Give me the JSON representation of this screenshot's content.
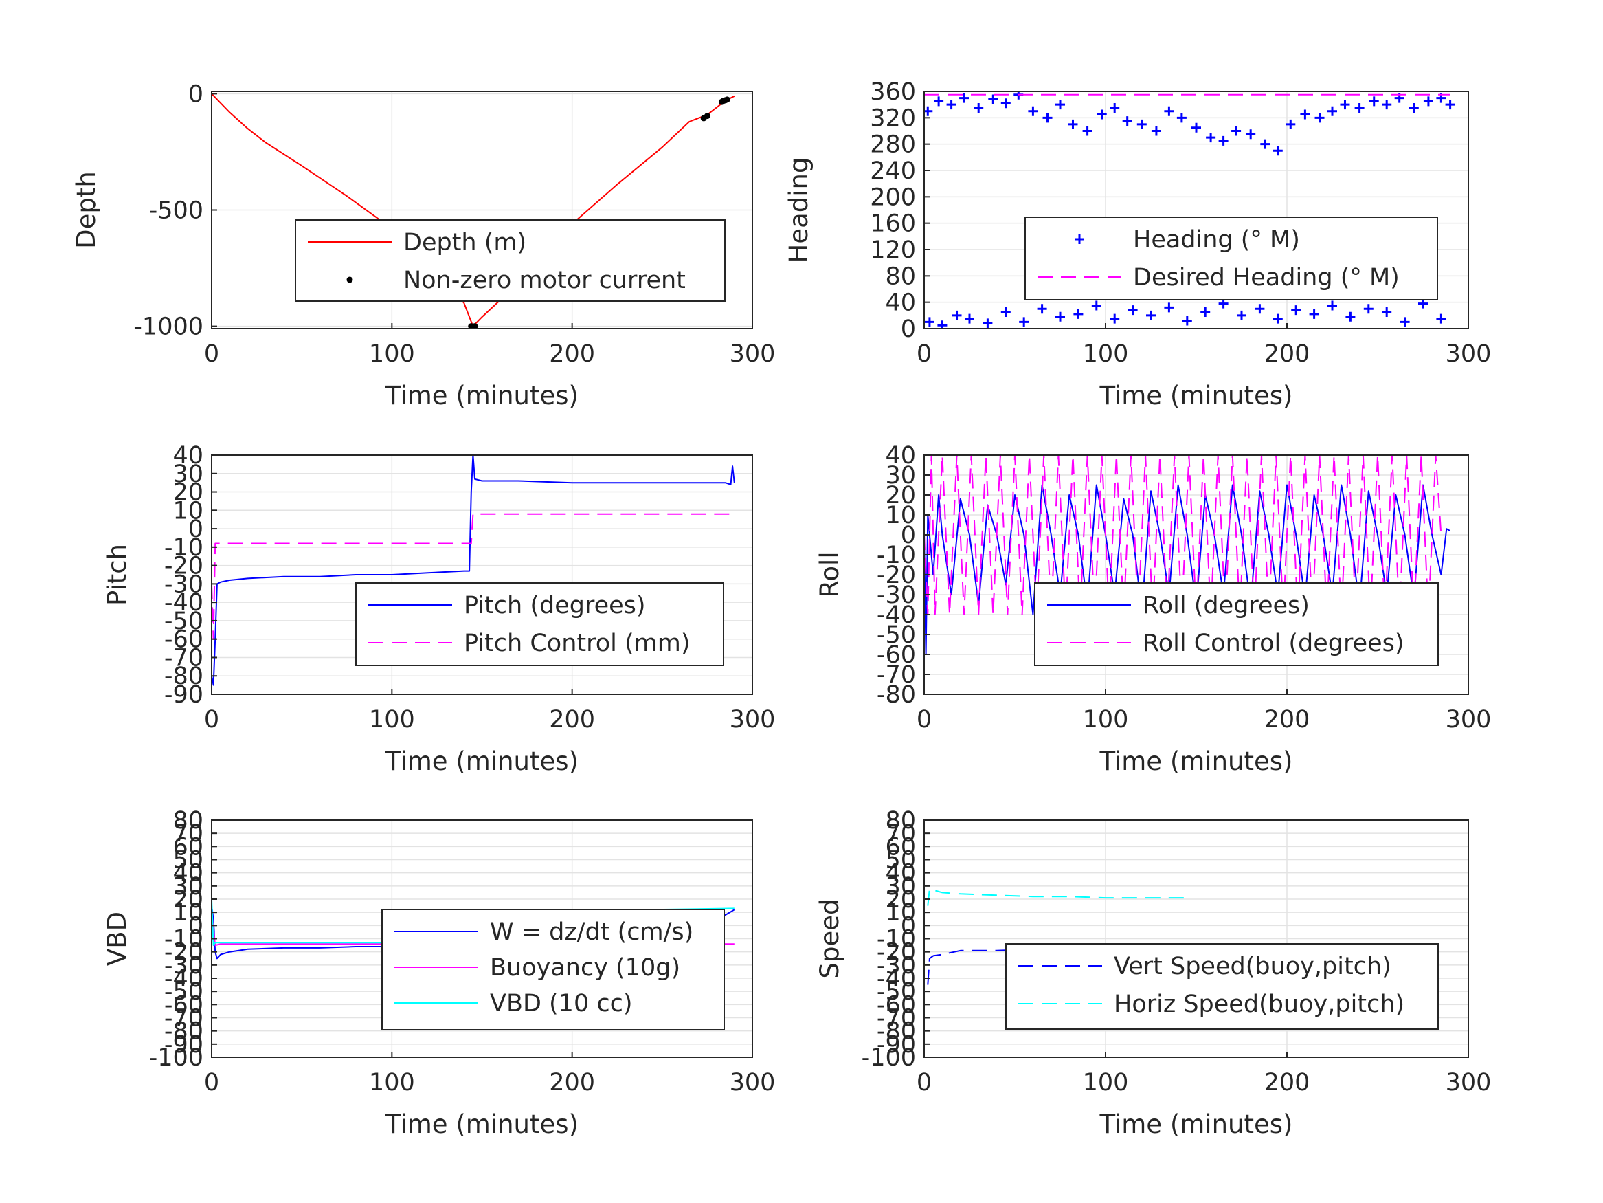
{
  "colors": {
    "red": "#ff0000",
    "blue": "#0000ff",
    "magenta": "#ff00ff",
    "cyan": "#00ffff",
    "black": "#000000",
    "grid": "#e3e3e3",
    "axis": "#262626"
  },
  "chart_data": [
    {
      "id": "depth",
      "type": "line",
      "xlabel": "Time (minutes)",
      "ylabel": "Depth",
      "xlim": [
        0,
        300
      ],
      "ylim": [
        -1010,
        10
      ],
      "xticks": [
        0,
        100,
        200,
        300
      ],
      "yticks": [
        -1000,
        -500,
        0
      ],
      "grid": true,
      "legend_position": "center-right",
      "series": [
        {
          "name": "Depth (m)",
          "style": "solid",
          "color": "red",
          "x": [
            0,
            5,
            10,
            20,
            30,
            50,
            75,
            100,
            125,
            140,
            145,
            150,
            175,
            200,
            225,
            250,
            265,
            275,
            280,
            285,
            290
          ],
          "y": [
            0,
            -40,
            -80,
            -150,
            -210,
            -310,
            -440,
            -580,
            -770,
            -900,
            -1000,
            -960,
            -780,
            -560,
            -390,
            -230,
            -120,
            -90,
            -60,
            -30,
            -10
          ]
        },
        {
          "name": "Non-zero motor current",
          "style": "dot",
          "color": "black",
          "x": [
            144,
            145,
            146,
            273,
            275,
            283,
            284,
            285,
            286
          ],
          "y": [
            -1000,
            -1002,
            -1000,
            -105,
            -95,
            -35,
            -30,
            -28,
            -25
          ]
        }
      ]
    },
    {
      "id": "heading",
      "type": "scatter",
      "xlabel": "Time (minutes)",
      "ylabel": "Heading",
      "xlim": [
        0,
        300
      ],
      "ylim": [
        0,
        360
      ],
      "xticks": [
        0,
        100,
        200,
        300
      ],
      "yticks": [
        0,
        40,
        80,
        120,
        160,
        200,
        240,
        280,
        320,
        360
      ],
      "grid": true,
      "legend_position": "center-right",
      "series": [
        {
          "name": "Heading (° M)",
          "style": "plus",
          "color": "blue",
          "x": [
            2,
            8,
            15,
            22,
            30,
            38,
            45,
            52,
            60,
            68,
            75,
            82,
            90,
            98,
            105,
            112,
            120,
            128,
            135,
            142,
            150,
            158,
            165,
            172,
            180,
            188,
            195,
            202,
            210,
            218,
            225,
            232,
            240,
            248,
            255,
            262,
            270,
            278,
            285,
            290,
            3,
            10,
            18,
            25,
            35,
            45,
            55,
            65,
            75,
            85,
            95,
            105,
            115,
            125,
            135,
            145,
            155,
            165,
            175,
            185,
            195,
            205,
            215,
            225,
            235,
            245,
            255,
            265,
            275,
            285
          ],
          "y": [
            330,
            345,
            340,
            350,
            335,
            348,
            342,
            355,
            330,
            320,
            340,
            310,
            300,
            325,
            335,
            315,
            310,
            300,
            330,
            320,
            305,
            290,
            285,
            300,
            295,
            280,
            270,
            310,
            325,
            320,
            330,
            340,
            335,
            345,
            340,
            350,
            335,
            345,
            350,
            340,
            10,
            5,
            20,
            15,
            8,
            25,
            10,
            30,
            18,
            22,
            35,
            15,
            28,
            20,
            32,
            12,
            25,
            38,
            20,
            30,
            15,
            28,
            22,
            35,
            18,
            30,
            25,
            10,
            38,
            15
          ]
        },
        {
          "name": "Desired Heading (° M)",
          "style": "dash",
          "color": "magenta",
          "x": [
            0,
            290
          ],
          "y": [
            355,
            355
          ]
        }
      ]
    },
    {
      "id": "pitch",
      "type": "line",
      "xlabel": "Time (minutes)",
      "ylabel": "Pitch",
      "xlim": [
        0,
        300
      ],
      "ylim": [
        -90,
        40
      ],
      "xticks": [
        0,
        100,
        200,
        300
      ],
      "yticks": [
        -90,
        -80,
        -70,
        -60,
        -50,
        -40,
        -30,
        -20,
        -10,
        0,
        10,
        20,
        30,
        40
      ],
      "grid": true,
      "legend_position": "bottom-right",
      "series": [
        {
          "name": "Pitch (degrees)",
          "style": "solid",
          "color": "blue",
          "x": [
            0,
            1,
            2,
            3,
            5,
            10,
            20,
            40,
            60,
            80,
            100,
            120,
            140,
            143,
            144,
            145,
            146,
            150,
            170,
            200,
            230,
            260,
            285,
            288,
            289,
            290
          ],
          "y": [
            -80,
            -85,
            -60,
            -30,
            -29,
            -28,
            -27,
            -26,
            -26,
            -25,
            -25,
            -24,
            -23,
            -23,
            20,
            40,
            27,
            26,
            26,
            25,
            25,
            25,
            25,
            24,
            34,
            25
          ]
        },
        {
          "name": "Pitch Control (mm)",
          "style": "dash",
          "color": "magenta",
          "x": [
            0,
            1,
            2,
            144,
            145,
            290
          ],
          "y": [
            -30,
            -60,
            -8,
            -8,
            8,
            8
          ]
        }
      ]
    },
    {
      "id": "roll",
      "type": "line",
      "xlabel": "Time (minutes)",
      "ylabel": "Roll",
      "xlim": [
        0,
        300
      ],
      "ylim": [
        -80,
        40
      ],
      "xticks": [
        0,
        100,
        200,
        300
      ],
      "yticks": [
        -80,
        -70,
        -60,
        -50,
        -40,
        -30,
        -20,
        -10,
        0,
        10,
        20,
        30,
        40
      ],
      "grid": true,
      "legend_position": "bottom-right",
      "series": [
        {
          "name": "Roll (degrees)",
          "style": "solid",
          "color": "blue",
          "x": [
            0,
            1,
            2,
            3,
            5,
            8,
            10,
            15,
            20,
            25,
            30,
            35,
            40,
            45,
            50,
            55,
            60,
            65,
            70,
            75,
            80,
            85,
            90,
            95,
            100,
            105,
            110,
            115,
            120,
            125,
            130,
            135,
            140,
            145,
            150,
            155,
            160,
            165,
            170,
            175,
            180,
            185,
            190,
            195,
            200,
            205,
            210,
            215,
            220,
            225,
            230,
            235,
            240,
            245,
            250,
            255,
            260,
            265,
            270,
            275,
            280,
            285,
            288,
            290
          ],
          "y": [
            0,
            -60,
            10,
            0,
            -20,
            20,
            0,
            -30,
            18,
            0,
            -35,
            15,
            0,
            -25,
            20,
            0,
            -40,
            25,
            0,
            -30,
            20,
            0,
            -35,
            25,
            0,
            -30,
            18,
            0,
            -38,
            22,
            0,
            -30,
            25,
            0,
            -35,
            20,
            0,
            -30,
            25,
            0,
            -35,
            22,
            0,
            -30,
            25,
            0,
            -32,
            20,
            0,
            -30,
            25,
            0,
            -35,
            22,
            0,
            -30,
            20,
            0,
            -32,
            25,
            0,
            -20,
            3,
            2
          ]
        },
        {
          "name": "Roll Control (degrees)",
          "style": "dash",
          "color": "magenta",
          "x": [
            0,
            2,
            4,
            6,
            10,
            14,
            18,
            22,
            26,
            30,
            34,
            38,
            42,
            46,
            50,
            54,
            58,
            62,
            66,
            70,
            74,
            78,
            82,
            86,
            90,
            94,
            98,
            102,
            106,
            110,
            114,
            118,
            122,
            126,
            130,
            134,
            138,
            142,
            146,
            150,
            154,
            158,
            162,
            166,
            170,
            174,
            178,
            182,
            186,
            190,
            194,
            198,
            202,
            206,
            210,
            214,
            218,
            222,
            226,
            230,
            234,
            238,
            242,
            246,
            250,
            254,
            258,
            262,
            266,
            270,
            274,
            278,
            282,
            285
          ],
          "y": [
            0,
            -40,
            40,
            -40,
            40,
            -40,
            40,
            -40,
            40,
            -40,
            40,
            -40,
            40,
            -40,
            40,
            -40,
            40,
            -40,
            40,
            -40,
            40,
            -40,
            40,
            -40,
            40,
            -40,
            40,
            -40,
            40,
            -40,
            40,
            -40,
            40,
            -40,
            40,
            -40,
            40,
            -40,
            40,
            -40,
            40,
            -40,
            40,
            -40,
            40,
            -40,
            40,
            -40,
            40,
            -40,
            40,
            -40,
            40,
            -40,
            40,
            -40,
            40,
            -40,
            40,
            -40,
            40,
            -40,
            40,
            -40,
            40,
            -40,
            40,
            -40,
            40,
            -40,
            40,
            -40,
            40,
            0
          ]
        }
      ]
    },
    {
      "id": "vbd",
      "type": "line",
      "xlabel": "Time (minutes)",
      "ylabel": "VBD",
      "xlim": [
        0,
        300
      ],
      "ylim": [
        -100,
        80
      ],
      "xticks": [
        0,
        100,
        200,
        300
      ],
      "yticks": [
        -100,
        -90,
        -80,
        -70,
        -60,
        -50,
        -40,
        -30,
        -20,
        -10,
        0,
        10,
        20,
        30,
        40,
        50,
        60,
        70,
        80
      ],
      "ytick_labels": [
        "-100",
        "-90",
        "-80",
        "-70",
        "-60",
        "-50",
        "-40",
        "-30",
        "-20",
        "-10",
        "0",
        "10",
        "20",
        "30",
        "40",
        "50",
        "60",
        "70",
        "80"
      ],
      "grid": true,
      "legend_position": "bottom-right",
      "series": [
        {
          "name": "W = dz/dt (cm/s)",
          "style": "solid",
          "color": "blue",
          "x": [
            0,
            1,
            2,
            3,
            5,
            10,
            20,
            40,
            60,
            80,
            100,
            120,
            140,
            143,
            145,
            146,
            150,
            170,
            200,
            230,
            260,
            280,
            285,
            290
          ],
          "y": [
            15,
            5,
            -20,
            -25,
            -22,
            -20,
            -18,
            -17,
            -17,
            -16,
            -16,
            -16,
            -16,
            -15,
            0,
            12,
            12,
            11,
            11,
            11,
            10,
            10,
            8,
            12
          ]
        },
        {
          "name": "Buoyancy (10g)",
          "style": "solid",
          "color": "magenta",
          "x": [
            0,
            2,
            5,
            290
          ],
          "y": [
            10,
            -15,
            -14,
            -14
          ]
        },
        {
          "name": "VBD (10 cc)",
          "style": "solid",
          "color": "cyan",
          "x": [
            0,
            1,
            2,
            5,
            140,
            144,
            145,
            146,
            290
          ],
          "y": [
            20,
            -15,
            -13,
            -13,
            -13,
            -13,
            10,
            10,
            13
          ]
        }
      ]
    },
    {
      "id": "speed",
      "type": "line",
      "xlabel": "Time (minutes)",
      "ylabel": "Speed",
      "xlim": [
        0,
        300
      ],
      "ylim": [
        -100,
        80
      ],
      "xticks": [
        0,
        100,
        200,
        300
      ],
      "yticks": [
        -100,
        -90,
        -80,
        -70,
        -60,
        -50,
        -40,
        -30,
        -20,
        -10,
        0,
        10,
        20,
        30,
        40,
        50,
        60,
        70,
        80
      ],
      "ytick_labels": [
        "-100",
        "-90",
        "-80",
        "-70",
        "-60",
        "-50",
        "-40",
        "-30",
        "-20",
        "-10",
        "0",
        "10",
        "20",
        "30",
        "40",
        "50",
        "60",
        "70",
        "80"
      ],
      "grid": true,
      "legend_position": "bottom-right",
      "series": [
        {
          "name": "Vert Speed(buoy,pitch)",
          "style": "dash",
          "color": "blue",
          "x": [
            2,
            3,
            5,
            10,
            20,
            40,
            60,
            80,
            100,
            120,
            140,
            145
          ],
          "y": [
            -45,
            -25,
            -23,
            -22,
            -19,
            -19,
            -18,
            -18,
            -18,
            -17,
            -16,
            -17
          ]
        },
        {
          "name": "Horiz Speed(buoy,pitch)",
          "style": "dash",
          "color": "cyan",
          "x": [
            2,
            3,
            5,
            10,
            20,
            40,
            60,
            80,
            100,
            120,
            140,
            145
          ],
          "y": [
            15,
            28,
            27,
            25,
            24,
            23,
            22,
            22,
            21,
            21,
            21,
            21
          ]
        }
      ]
    }
  ]
}
